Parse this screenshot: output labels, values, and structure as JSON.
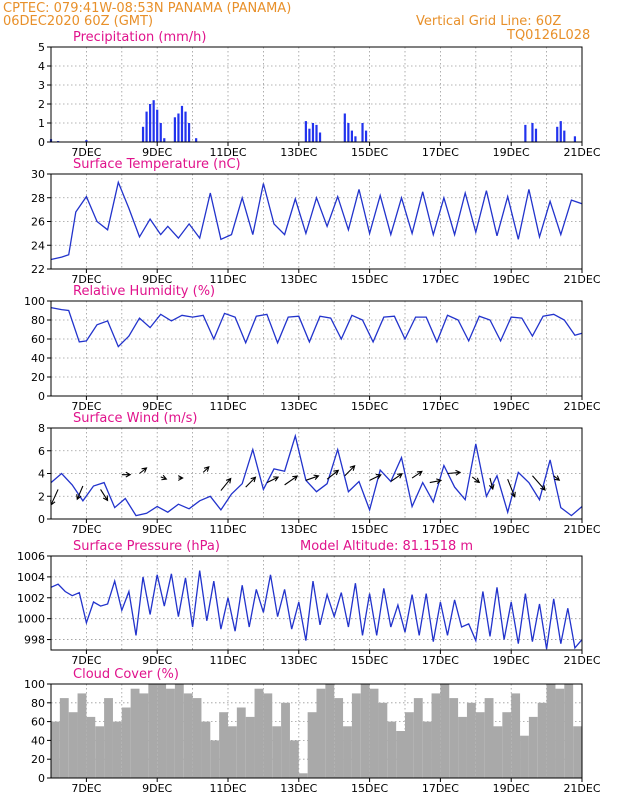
{
  "header": {
    "line1_left": "CPTEC:  079:41W-08:53N  PANAMA (PANAMA)",
    "line2_left": "06DEC2020 60Z (GMT)",
    "line1_right": "Vertical Grid Line: 60Z",
    "line2_right": "TQ0126L028"
  },
  "colors": {
    "header": "#e8902a",
    "title": "#e0138c",
    "line": "#2233cc",
    "bars": "#2233ee",
    "cloud": "#a9a9a9"
  },
  "x_axis": {
    "tick_labels": [
      "7DEC",
      "9DEC",
      "11DEC",
      "13DEC",
      "15DEC",
      "17DEC",
      "19DEC",
      "21DEC"
    ],
    "range_days": [
      6,
      21
    ]
  },
  "chart_data": [
    {
      "type": "bar",
      "title": "Precipitation (mm/h)",
      "ylim": [
        0,
        5
      ],
      "yticks": [
        0,
        1,
        2,
        3,
        4,
        5
      ],
      "grid": true,
      "x_days": [
        6.0,
        6.2,
        7.0,
        8.6,
        8.7,
        8.8,
        8.9,
        9.0,
        9.1,
        9.2,
        9.5,
        9.6,
        9.7,
        9.8,
        9.9,
        10.1,
        13.2,
        13.3,
        13.4,
        13.5,
        13.6,
        14.3,
        14.4,
        14.5,
        14.6,
        14.8,
        14.9,
        19.4,
        19.6,
        19.7,
        20.3,
        20.4,
        20.5,
        20.8
      ],
      "values": [
        0.15,
        0.05,
        0.1,
        0.8,
        1.6,
        2.0,
        2.2,
        1.7,
        1.0,
        0.2,
        1.3,
        1.5,
        1.9,
        1.6,
        1.0,
        0.2,
        1.1,
        0.7,
        1.0,
        0.9,
        0.5,
        1.5,
        1.0,
        0.6,
        0.3,
        1.0,
        0.6,
        0.9,
        1.0,
        0.7,
        0.8,
        1.1,
        0.6,
        0.3
      ]
    },
    {
      "type": "line",
      "title": "Surface Temperature (nC)",
      "ylim": [
        22,
        30
      ],
      "yticks": [
        22,
        24,
        26,
        28,
        30
      ],
      "grid": true,
      "x": [
        6.0,
        6.3,
        6.5,
        6.7,
        7.0,
        7.3,
        7.6,
        7.9,
        8.2,
        8.5,
        8.8,
        9.1,
        9.3,
        9.6,
        9.9,
        10.2,
        10.5,
        10.8,
        11.1,
        11.4,
        11.7,
        12.0,
        12.3,
        12.6,
        12.9,
        13.2,
        13.5,
        13.8,
        14.1,
        14.4,
        14.7,
        15.0,
        15.3,
        15.6,
        15.9,
        16.2,
        16.5,
        16.8,
        17.1,
        17.4,
        17.7,
        18.0,
        18.3,
        18.6,
        18.9,
        19.2,
        19.5,
        19.8,
        20.1,
        20.4,
        20.7,
        21.0
      ],
      "values": [
        22.8,
        23.0,
        23.2,
        26.8,
        28.1,
        26.0,
        25.3,
        29.3,
        27.1,
        24.7,
        26.2,
        24.9,
        25.6,
        24.6,
        25.8,
        24.6,
        28.4,
        24.5,
        24.9,
        28.0,
        24.9,
        29.2,
        25.8,
        24.9,
        27.9,
        25.0,
        28.0,
        25.6,
        28.1,
        25.3,
        28.7,
        25.0,
        28.2,
        24.9,
        28.0,
        25.0,
        28.5,
        24.9,
        28.0,
        24.9,
        28.4,
        25.1,
        28.6,
        24.8,
        28.1,
        24.5,
        28.7,
        24.7,
        27.7,
        24.9,
        27.8,
        27.5
      ]
    },
    {
      "type": "line",
      "title": "Relative Humidity (%)",
      "ylim": [
        0,
        100
      ],
      "yticks": [
        0,
        20,
        40,
        60,
        80,
        100
      ],
      "grid": true,
      "x": [
        6.0,
        6.3,
        6.5,
        6.8,
        7.0,
        7.3,
        7.6,
        7.9,
        8.2,
        8.5,
        8.8,
        9.1,
        9.4,
        9.7,
        10.0,
        10.3,
        10.6,
        10.9,
        11.2,
        11.5,
        11.8,
        12.1,
        12.4,
        12.7,
        13.0,
        13.3,
        13.6,
        13.9,
        14.2,
        14.5,
        14.8,
        15.1,
        15.4,
        15.7,
        16.0,
        16.3,
        16.6,
        16.9,
        17.2,
        17.5,
        17.8,
        18.1,
        18.4,
        18.7,
        19.0,
        19.3,
        19.6,
        19.9,
        20.2,
        20.5,
        20.8,
        21.0
      ],
      "values": [
        93,
        91,
        90,
        57,
        58,
        75,
        79,
        52,
        63,
        82,
        72,
        86,
        79,
        85,
        83,
        85,
        60,
        87,
        83,
        56,
        84,
        86,
        56,
        83,
        84,
        57,
        84,
        82,
        60,
        85,
        80,
        57,
        83,
        84,
        60,
        83,
        83,
        57,
        85,
        80,
        58,
        84,
        80,
        58,
        83,
        82,
        63,
        84,
        86,
        80,
        64,
        66
      ]
    },
    {
      "type": "line",
      "title": "Surface Wind (m/s)",
      "ylim": [
        0,
        8
      ],
      "yticks": [
        0,
        2,
        4,
        6,
        8
      ],
      "grid": true,
      "x": [
        6.0,
        6.3,
        6.6,
        6.9,
        7.2,
        7.5,
        7.8,
        8.1,
        8.4,
        8.7,
        9.0,
        9.3,
        9.6,
        9.9,
        10.2,
        10.5,
        10.8,
        11.1,
        11.4,
        11.7,
        12.0,
        12.3,
        12.6,
        12.9,
        13.2,
        13.5,
        13.8,
        14.1,
        14.4,
        14.7,
        15.0,
        15.3,
        15.6,
        15.9,
        16.2,
        16.5,
        16.8,
        17.1,
        17.4,
        17.7,
        18.0,
        18.3,
        18.6,
        18.9,
        19.2,
        19.5,
        19.8,
        20.1,
        20.4,
        20.7,
        21.0
      ],
      "values": [
        3.2,
        4.0,
        3.0,
        1.6,
        2.9,
        3.2,
        1.0,
        1.8,
        0.3,
        0.5,
        1.1,
        0.6,
        1.3,
        0.9,
        1.6,
        2.0,
        0.8,
        2.2,
        3.1,
        6.1,
        2.6,
        4.4,
        4.2,
        7.3,
        3.4,
        2.4,
        3.1,
        6.1,
        2.4,
        3.3,
        0.8,
        4.3,
        3.3,
        5.4,
        1.1,
        3.2,
        1.5,
        4.7,
        2.8,
        1.7,
        6.6,
        2.0,
        3.8,
        0.6,
        4.1,
        3.2,
        1.7,
        5.2,
        1.0,
        0.3,
        1.1
      ]
    },
    {
      "type": "line",
      "title": "Surface Pressure (hPa)",
      "annotation": "Model Altitude: 81.1518 m",
      "ylim": [
        997,
        1006
      ],
      "yticks": [
        998,
        1000,
        1002,
        1004,
        1006
      ],
      "grid": true,
      "x": [
        6.0,
        6.2,
        6.4,
        6.6,
        6.8,
        7.0,
        7.2,
        7.4,
        7.6,
        7.8,
        8.0,
        8.2,
        8.4,
        8.6,
        8.8,
        9.0,
        9.2,
        9.4,
        9.6,
        9.8,
        10.0,
        10.2,
        10.4,
        10.6,
        10.8,
        11.0,
        11.2,
        11.4,
        11.6,
        11.8,
        12.0,
        12.2,
        12.4,
        12.6,
        12.8,
        13.0,
        13.2,
        13.4,
        13.6,
        13.8,
        14.0,
        14.2,
        14.4,
        14.6,
        14.8,
        15.0,
        15.2,
        15.4,
        15.6,
        15.8,
        16.0,
        16.2,
        16.4,
        16.6,
        16.8,
        17.0,
        17.2,
        17.4,
        17.6,
        17.8,
        18.0,
        18.2,
        18.4,
        18.6,
        18.8,
        19.0,
        19.2,
        19.4,
        19.6,
        19.8,
        20.0,
        20.2,
        20.4,
        20.6,
        20.8,
        21.0
      ],
      "values": [
        1003.0,
        1003.3,
        1002.6,
        1002.2,
        1002.5,
        999.6,
        1001.6,
        1001.2,
        1001.4,
        1003.6,
        1000.8,
        1002.6,
        998.4,
        1004.0,
        1000.4,
        1004.2,
        1001.2,
        1004.3,
        1000.2,
        1003.9,
        999.2,
        1004.6,
        999.8,
        1003.6,
        999.0,
        1002.0,
        998.8,
        1003.2,
        999.2,
        1002.8,
        1000.6,
        1004.2,
        1000.2,
        1002.8,
        999.0,
        1001.6,
        997.9,
        1003.6,
        999.4,
        1002.3,
        1000.2,
        1002.5,
        999.2,
        1003.4,
        998.4,
        1002.4,
        998.4,
        1002.9,
        999.2,
        1001.3,
        998.7,
        1002.3,
        998.4,
        1002.4,
        997.8,
        1001.6,
        998.4,
        1001.8,
        999.2,
        999.5,
        997.9,
        1002.6,
        998.3,
        1003.0,
        998.0,
        1001.6,
        997.6,
        1002.4,
        997.8,
        1001.4,
        997.1,
        1001.9,
        997.6,
        1001.0,
        997.2,
        998.0
      ]
    },
    {
      "type": "bar",
      "title": "Cloud Cover (%)",
      "ylim": [
        0,
        100
      ],
      "yticks": [
        0,
        20,
        40,
        60,
        80,
        100
      ],
      "grid": true,
      "x_days": [
        6.0,
        6.25,
        6.5,
        6.75,
        7.0,
        7.25,
        7.5,
        7.75,
        8.0,
        8.25,
        8.5,
        8.75,
        9.0,
        9.25,
        9.5,
        9.75,
        10.0,
        10.25,
        10.5,
        10.75,
        11.0,
        11.25,
        11.5,
        11.75,
        12.0,
        12.25,
        12.5,
        12.75,
        13.0,
        13.25,
        13.5,
        13.75,
        14.0,
        14.25,
        14.5,
        14.75,
        15.0,
        15.25,
        15.5,
        15.75,
        16.0,
        16.25,
        16.5,
        16.75,
        17.0,
        17.25,
        17.5,
        17.75,
        18.0,
        18.25,
        18.5,
        18.75,
        19.0,
        19.25,
        19.5,
        19.75,
        20.0,
        20.25,
        20.5,
        20.75
      ],
      "values": [
        60,
        85,
        70,
        90,
        65,
        55,
        85,
        60,
        75,
        95,
        90,
        100,
        100,
        95,
        100,
        90,
        85,
        60,
        40,
        70,
        55,
        75,
        65,
        95,
        90,
        55,
        80,
        40,
        5,
        70,
        95,
        100,
        85,
        55,
        90,
        100,
        95,
        80,
        60,
        50,
        70,
        85,
        60,
        90,
        100,
        85,
        65,
        80,
        70,
        85,
        55,
        70,
        90,
        45,
        65,
        80,
        100,
        95,
        100,
        55
      ]
    }
  ]
}
